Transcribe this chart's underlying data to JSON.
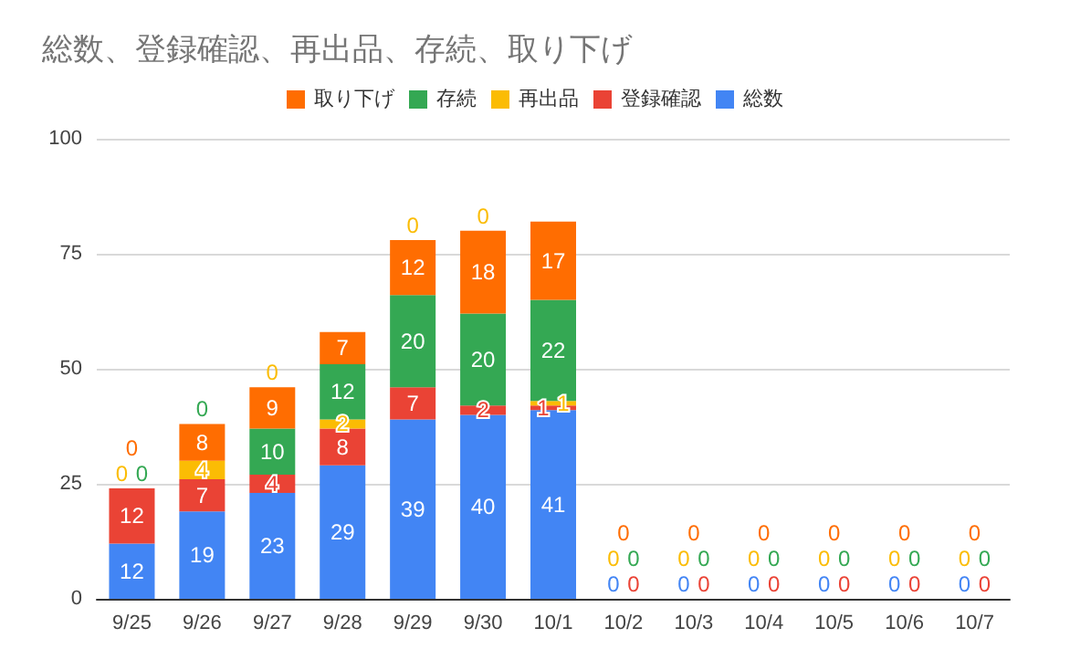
{
  "chart_data": {
    "type": "bar",
    "title": "総数、登録確認、再出品、存続、取り下げ",
    "stacked": true,
    "categories": [
      "9/25",
      "9/26",
      "9/27",
      "9/28",
      "9/29",
      "9/30",
      "10/1",
      "10/2",
      "10/3",
      "10/4",
      "10/5",
      "10/6",
      "10/7"
    ],
    "series": [
      {
        "name": "総数",
        "color": "#4285f4",
        "values": [
          12,
          19,
          23,
          29,
          39,
          40,
          41,
          0,
          0,
          0,
          0,
          0,
          0
        ]
      },
      {
        "name": "登録確認",
        "color": "#ea4335",
        "values": [
          12,
          7,
          4,
          8,
          7,
          2,
          1,
          0,
          0,
          0,
          0,
          0,
          0
        ]
      },
      {
        "name": "再出品",
        "color": "#fbbc04",
        "values": [
          0,
          4,
          0,
          2,
          0,
          0,
          1,
          0,
          0,
          0,
          0,
          0,
          0
        ]
      },
      {
        "name": "存続",
        "color": "#34a853",
        "values": [
          0,
          0,
          10,
          12,
          20,
          20,
          22,
          0,
          0,
          0,
          0,
          0,
          0
        ]
      },
      {
        "name": "取り下げ",
        "color": "#ff6d01",
        "values": [
          0,
          8,
          9,
          7,
          12,
          18,
          17,
          0,
          0,
          0,
          0,
          0,
          0
        ]
      }
    ],
    "ylim": [
      0,
      100
    ],
    "yticks": [
      0,
      25,
      50,
      75,
      100
    ],
    "grid": "y",
    "legend": "top",
    "data_labels": true
  }
}
